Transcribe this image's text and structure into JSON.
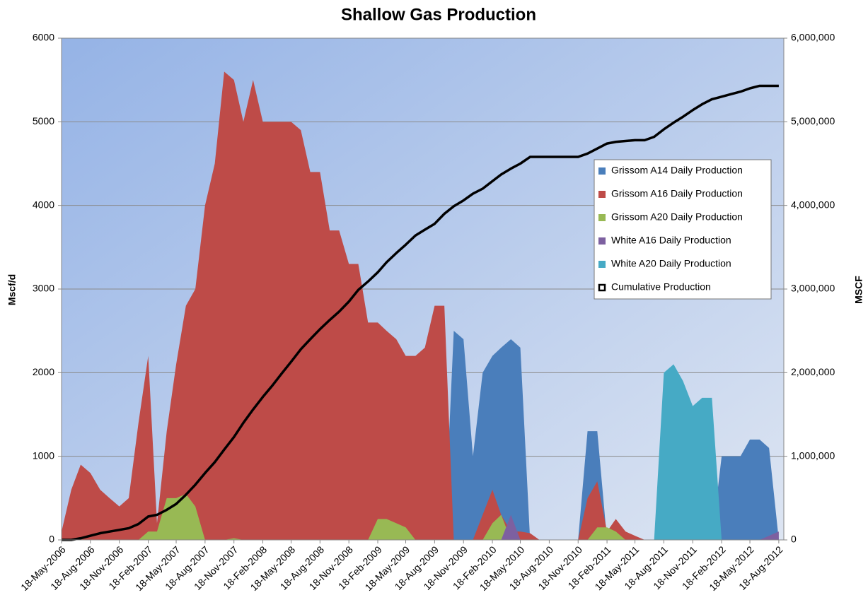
{
  "chart_data": {
    "type": "area",
    "title": "Shallow Gas Production",
    "y_label": "Mscf/d",
    "y2_label": "MSCF",
    "legend": "right",
    "grid": true,
    "x": [
      "18-May-2006",
      "18-Jun-2006",
      "18-Jul-2006",
      "18-Aug-2006",
      "18-Sep-2006",
      "18-Oct-2006",
      "18-Nov-2006",
      "18-Dec-2006",
      "18-Jan-2007",
      "18-Feb-2007",
      "18-Mar-2007",
      "18-Apr-2007",
      "18-May-2007",
      "18-Jun-2007",
      "18-Jul-2007",
      "18-Aug-2007",
      "18-Sep-2007",
      "18-Oct-2007",
      "18-Nov-2007",
      "18-Dec-2007",
      "18-Jan-2008",
      "18-Feb-2008",
      "18-Mar-2008",
      "18-Apr-2008",
      "18-May-2008",
      "18-Jun-2008",
      "18-Jul-2008",
      "18-Aug-2008",
      "18-Sep-2008",
      "18-Oct-2008",
      "18-Nov-2008",
      "18-Dec-2008",
      "18-Jan-2009",
      "18-Feb-2009",
      "18-Mar-2009",
      "18-Apr-2009",
      "18-May-2009",
      "18-Jun-2009",
      "18-Jul-2009",
      "18-Aug-2009",
      "18-Sep-2009",
      "18-Oct-2009",
      "18-Nov-2009",
      "18-Dec-2009",
      "18-Jan-2010",
      "18-Feb-2010",
      "18-Mar-2010",
      "18-Apr-2010",
      "18-May-2010",
      "18-Jun-2010",
      "18-Jul-2010",
      "18-Aug-2010",
      "18-Sep-2010",
      "18-Oct-2010",
      "18-Nov-2010",
      "18-Dec-2010",
      "18-Jan-2011",
      "18-Feb-2011",
      "18-Mar-2011",
      "18-Apr-2011",
      "18-May-2011",
      "18-Jun-2011",
      "18-Jul-2011",
      "18-Aug-2011",
      "18-Sep-2011",
      "18-Oct-2011",
      "18-Nov-2011",
      "18-Dec-2011",
      "18-Jan-2012",
      "18-Feb-2012",
      "18-Mar-2012",
      "18-Apr-2012",
      "18-May-2012",
      "18-Jun-2012",
      "18-Jul-2012",
      "18-Aug-2012"
    ],
    "xlim": [
      "18-May-2006",
      "3-Sep-2012"
    ],
    "xticks": [
      "18-May-2006",
      "18-Aug-2006",
      "18-Nov-2006",
      "18-Feb-2007",
      "18-May-2007",
      "18-Aug-2007",
      "18-Nov-2007",
      "18-Feb-2008",
      "18-May-2008",
      "18-Aug-2008",
      "18-Nov-2008",
      "18-Feb-2009",
      "18-May-2009",
      "18-Aug-2009",
      "18-Nov-2009",
      "18-Feb-2010",
      "18-May-2010",
      "18-Aug-2010",
      "18-Nov-2010",
      "18-Feb-2011",
      "18-May-2011",
      "18-Aug-2011",
      "18-Nov-2011",
      "18-Feb-2012",
      "18-May-2012",
      "18-Aug-2012"
    ],
    "ylim": [
      0,
      6000
    ],
    "yticks": [
      0,
      1000,
      2000,
      3000,
      4000,
      5000,
      6000
    ],
    "y2lim": [
      0,
      6000000
    ],
    "y2ticks": [
      0,
      {
        "value": 1000000,
        "label": "1,000,000"
      },
      {
        "value": 2000000,
        "label": "2,000,000"
      },
      {
        "value": 3000000,
        "label": "3,000,000"
      },
      {
        "value": 4000000,
        "label": "4,000,000"
      },
      {
        "value": 5000000,
        "label": "5,000,000"
      },
      {
        "value": 6000000,
        "label": "6,000,000"
      }
    ],
    "series": [
      {
        "name": "Grissom A14 Daily Production",
        "color": "#4a7ebb",
        "values": [
          0,
          0,
          0,
          0,
          0,
          0,
          0,
          0,
          0,
          0,
          0,
          0,
          0,
          0,
          0,
          0,
          0,
          0,
          0,
          0,
          0,
          0,
          0,
          0,
          0,
          0,
          0,
          0,
          0,
          0,
          0,
          0,
          0,
          0,
          0,
          0,
          0,
          0,
          0,
          0,
          0,
          2500,
          2400,
          1000,
          2000,
          2200,
          2300,
          2400,
          2300,
          0,
          0,
          0,
          0,
          0,
          0,
          1300,
          1300,
          0,
          0,
          0,
          0,
          0,
          0,
          0,
          0,
          0,
          1500,
          0,
          0,
          1000,
          1000,
          1000,
          1200,
          1200,
          1100,
          0
        ]
      },
      {
        "name": "Grissom A16 Daily Production",
        "color": "#be4b48",
        "values": [
          100,
          600,
          900,
          800,
          600,
          500,
          400,
          500,
          1400,
          2200,
          200,
          1300,
          2100,
          2800,
          3000,
          4000,
          4500,
          5600,
          5500,
          5000,
          5500,
          5000,
          5000,
          5000,
          5000,
          4900,
          4400,
          4400,
          3700,
          3700,
          3300,
          3300,
          2600,
          2600,
          2500,
          2400,
          2200,
          2200,
          2300,
          2800,
          2800,
          0,
          0,
          0,
          300,
          600,
          300,
          100,
          100,
          80,
          0,
          0,
          0,
          0,
          0,
          500,
          700,
          100,
          250,
          100,
          50,
          0,
          0,
          0,
          0,
          0,
          0,
          100,
          0,
          0,
          0,
          0,
          0,
          0,
          0,
          0
        ]
      },
      {
        "name": "Grissom A20 Daily Production",
        "color": "#98b954",
        "values": [
          0,
          0,
          0,
          0,
          0,
          0,
          0,
          0,
          0,
          100,
          100,
          500,
          500,
          550,
          400,
          0,
          0,
          0,
          20,
          0,
          0,
          0,
          0,
          0,
          0,
          0,
          0,
          0,
          0,
          0,
          0,
          0,
          0,
          250,
          250,
          200,
          150,
          0,
          0,
          0,
          0,
          0,
          0,
          0,
          0,
          200,
          300,
          0,
          0,
          0,
          0,
          0,
          0,
          0,
          0,
          0,
          150,
          150,
          100,
          0,
          0,
          0,
          0,
          0,
          0,
          0,
          0,
          0,
          0,
          0,
          0,
          0,
          0,
          0,
          0,
          0
        ]
      },
      {
        "name": "White A16 Daily Production",
        "color": "#7d60a0",
        "values": [
          0,
          0,
          0,
          0,
          0,
          0,
          0,
          0,
          0,
          0,
          0,
          0,
          0,
          0,
          0,
          0,
          0,
          0,
          0,
          0,
          0,
          0,
          0,
          0,
          0,
          0,
          0,
          0,
          0,
          0,
          0,
          0,
          0,
          0,
          0,
          0,
          0,
          0,
          0,
          0,
          0,
          0,
          0,
          0,
          0,
          0,
          0,
          300,
          0,
          0,
          0,
          0,
          0,
          0,
          0,
          0,
          0,
          0,
          0,
          0,
          0,
          0,
          0,
          0,
          0,
          0,
          0,
          0,
          0,
          0,
          0,
          0,
          0,
          0,
          50,
          100
        ]
      },
      {
        "name": "White A20 Daily Production",
        "color": "#46aac5",
        "values": [
          0,
          0,
          0,
          0,
          0,
          0,
          0,
          0,
          0,
          0,
          0,
          0,
          0,
          0,
          0,
          0,
          0,
          0,
          0,
          0,
          0,
          0,
          0,
          0,
          0,
          0,
          0,
          0,
          0,
          0,
          0,
          0,
          0,
          0,
          0,
          0,
          0,
          0,
          0,
          0,
          0,
          0,
          0,
          0,
          0,
          0,
          0,
          0,
          0,
          0,
          0,
          0,
          0,
          0,
          0,
          0,
          0,
          0,
          0,
          0,
          0,
          0,
          0,
          2000,
          2100,
          1900,
          1600,
          1700,
          1700,
          0,
          0,
          0,
          0,
          0,
          0,
          0
        ]
      },
      {
        "name": "Cumulative Production",
        "color": "#000000",
        "axis": "y2",
        "values": [
          0,
          0,
          20000,
          50000,
          80000,
          100000,
          120000,
          140000,
          190000,
          280000,
          300000,
          360000,
          430000,
          540000,
          660000,
          800000,
          930000,
          1080000,
          1230000,
          1400000,
          1560000,
          1710000,
          1840000,
          1990000,
          2130000,
          2280000,
          2400000,
          2520000,
          2630000,
          2730000,
          2850000,
          2990000,
          3090000,
          3200000,
          3320000,
          3430000,
          3530000,
          3640000,
          3710000,
          3780000,
          3900000,
          3990000,
          4060000,
          4140000,
          4200000,
          4290000,
          4370000,
          4440000,
          4500000,
          4580000,
          4580000,
          4580000,
          4580000,
          4580000,
          4580000,
          4620000,
          4680000,
          4740000,
          4760000,
          4770000,
          4780000,
          4780000,
          4820000,
          4910000,
          4990000,
          5060000,
          5140000,
          5210000,
          5270000,
          5300000,
          5330000,
          5360000,
          5400000,
          5430000,
          5430000,
          5430000
        ]
      }
    ]
  }
}
